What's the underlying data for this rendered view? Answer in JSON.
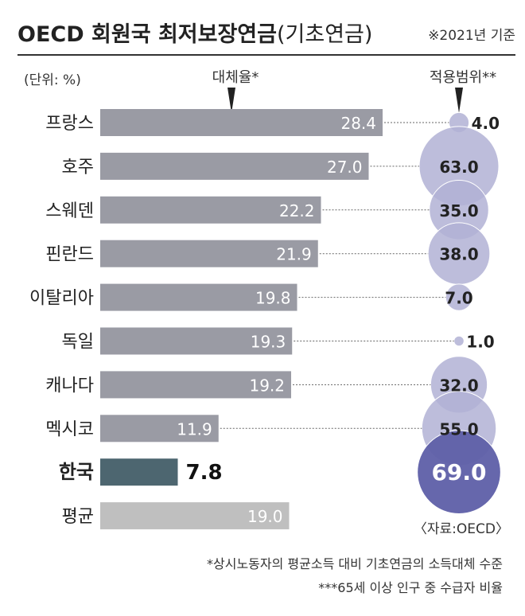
{
  "title_main": "OECD 회원국 최저보장연금",
  "title_paren": "(기초연금)",
  "year_note": "※2021년 기준",
  "unit_label": "(단위: %)",
  "col_replacement": "대체율*",
  "col_coverage": "적용범위**",
  "source": "〈자료:OECD〉",
  "footnote1": "*상시노동자의 평균소득 대비 기초연금의 소득대체 수준",
  "footnote2": "***65세 이상 인구 중 수급자 비율",
  "colors": {
    "bar_default": "#9a9ba4",
    "bar_korea": "#4d6670",
    "bar_average": "#bfbfbf",
    "bubble_light": "#b1b2d5",
    "bubble_dark": "#5e5fa8",
    "title_rule": "#333333"
  },
  "chart_data": {
    "type": "bar",
    "categories": [
      "프랑스",
      "호주",
      "스웨덴",
      "핀란드",
      "이탈리아",
      "독일",
      "캐나다",
      "멕시코",
      "한국",
      "평균"
    ],
    "series": [
      {
        "name": "대체율*",
        "values": [
          28.4,
          27.0,
          22.2,
          21.9,
          19.8,
          19.3,
          19.2,
          11.9,
          7.8,
          19.0
        ]
      },
      {
        "name": "적용범위**",
        "values": [
          4.0,
          63.0,
          35.0,
          38.0,
          7.0,
          1.0,
          32.0,
          55.0,
          69.0,
          null
        ]
      }
    ],
    "value_labels_replacement": [
      "28.4",
      "27.0",
      "22.2",
      "21.9",
      "19.8",
      "19.3",
      "19.2",
      "11.9",
      "7.8",
      "19.0"
    ],
    "value_labels_coverage": [
      "4.0",
      "63.0",
      "35.0",
      "38.0",
      "7.0",
      "1.0",
      "32.0",
      "55.0",
      "69.0"
    ],
    "highlight": "한국",
    "average_category": "평균"
  }
}
